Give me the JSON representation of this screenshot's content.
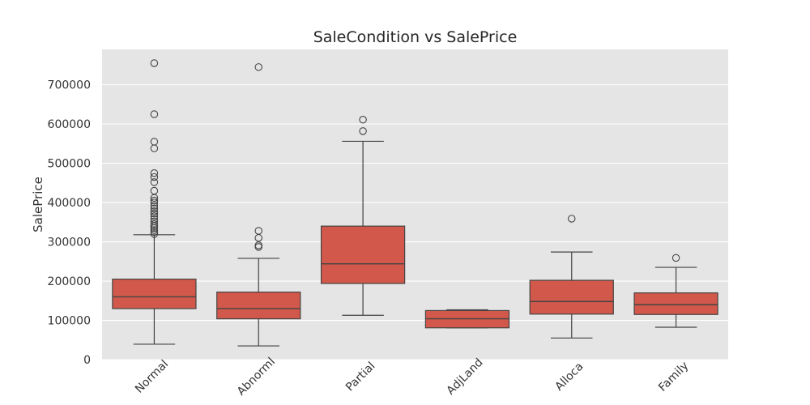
{
  "chart_data": {
    "type": "box",
    "title": "SaleCondition vs SalePrice",
    "xlabel": "",
    "ylabel": "SalePrice",
    "ylim": [
      0,
      790000
    ],
    "yticks": [
      0,
      100000,
      200000,
      300000,
      400000,
      500000,
      600000,
      700000
    ],
    "grid": true,
    "box_color": "#d1584a",
    "edge_color": "#444444",
    "background_color": "#e5e5e5",
    "categories": [
      "Normal",
      "Abnorml",
      "Partial",
      "AdjLand",
      "Alloca",
      "Family"
    ],
    "boxes": [
      {
        "name": "Normal",
        "whisker_low": 39300,
        "q1": 130000,
        "median": 160000,
        "q3": 205000,
        "whisker_high": 318000,
        "outliers": [
          755000,
          625000,
          555000,
          538000,
          475000,
          465000,
          452000,
          430000,
          412000,
          405000,
          400000,
          392000,
          385000,
          378000,
          372000,
          365000,
          358000,
          352000,
          345000,
          340000,
          335000,
          330000,
          325000,
          320000
        ]
      },
      {
        "name": "Abnorml",
        "whisker_low": 34900,
        "q1": 104000,
        "median": 130000,
        "q3": 172000,
        "whisker_high": 258000,
        "outliers": [
          745000,
          328000,
          310000,
          291000,
          287000
        ]
      },
      {
        "name": "Partial",
        "whisker_low": 113000,
        "q1": 194000,
        "median": 244000,
        "q3": 340000,
        "whisker_high": 556000,
        "outliers": [
          611000,
          582000
        ]
      },
      {
        "name": "AdjLand",
        "whisker_low": 81000,
        "q1": 81000,
        "median": 104000,
        "q3": 125000,
        "whisker_high": 127000,
        "outliers": []
      },
      {
        "name": "Alloca",
        "whisker_low": 55000,
        "q1": 116000,
        "median": 148000,
        "q3": 202000,
        "whisker_high": 274000,
        "outliers": [
          359000
        ]
      },
      {
        "name": "Family",
        "whisker_low": 82500,
        "q1": 115000,
        "median": 140000,
        "q3": 170000,
        "whisker_high": 235000,
        "outliers": [
          259000
        ]
      }
    ]
  }
}
